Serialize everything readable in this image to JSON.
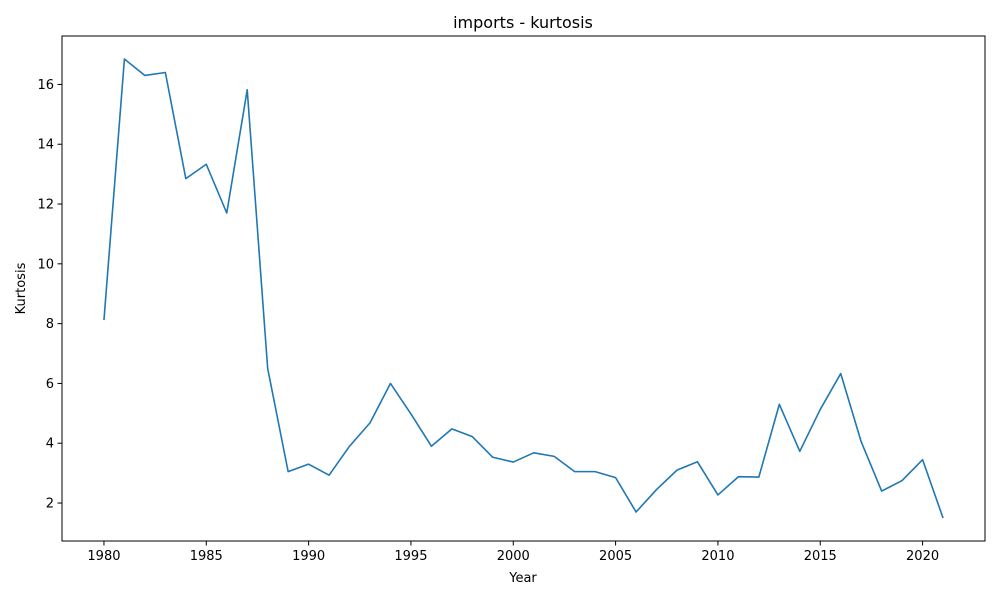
{
  "chart_data": {
    "type": "line",
    "title": "imports - kurtosis",
    "xlabel": "Year",
    "ylabel": "Kurtosis",
    "xlim": [
      1977.95,
      2023.05
    ],
    "ylim": [
      0.73,
      17.62
    ],
    "xticks": [
      1980,
      1985,
      1990,
      1995,
      2000,
      2005,
      2010,
      2015,
      2020
    ],
    "yticks": [
      2,
      4,
      6,
      8,
      10,
      12,
      14,
      16
    ],
    "grid": false,
    "line_color": "#1f77b4",
    "series": [
      {
        "x": [
          1980,
          1981,
          1982,
          1983,
          1984,
          1985,
          1986,
          1987,
          1988,
          1989,
          1990,
          1991,
          1992,
          1993,
          1994,
          1995,
          1996,
          1997,
          1998,
          1999,
          2000,
          2001,
          2002,
          2003,
          2004,
          2005,
          2006,
          2007,
          2008,
          2009,
          2010,
          2011,
          2012,
          2013,
          2014,
          2015,
          2016,
          2017,
          2018,
          2019,
          2020,
          2021
        ],
        "values": [
          8.12,
          16.85,
          16.3,
          16.4,
          12.85,
          13.33,
          11.7,
          15.82,
          6.5,
          3.05,
          3.3,
          2.93,
          3.9,
          4.68,
          6.0,
          4.98,
          3.9,
          4.48,
          4.22,
          3.53,
          3.37,
          3.68,
          3.56,
          3.05,
          3.05,
          2.85,
          1.7,
          2.45,
          3.1,
          3.38,
          2.27,
          2.88,
          2.87,
          5.3,
          3.73,
          5.13,
          6.33,
          4.05,
          2.4,
          2.75,
          3.45,
          1.5
        ]
      }
    ]
  }
}
